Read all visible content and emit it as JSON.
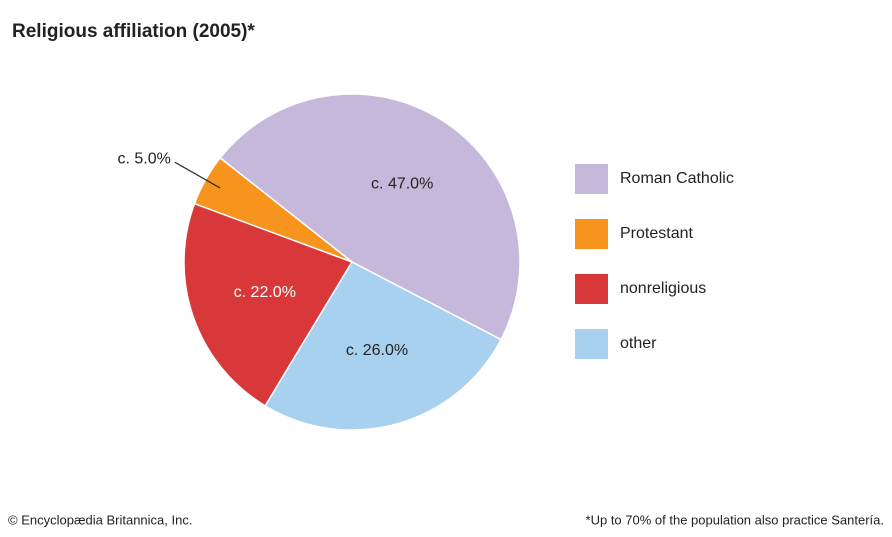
{
  "chart_data": {
    "type": "pie",
    "title": "Religious affiliation (2005)*",
    "categories": [
      "Roman Catholic",
      "Protestant",
      "nonreligious",
      "other"
    ],
    "values": [
      47.0,
      5.0,
      22.0,
      26.0
    ],
    "value_labels": [
      "c. 47.0%",
      "c. 5.0%",
      "c. 22.0%",
      "c. 26.0%"
    ],
    "colors": [
      "#c6b8da",
      "#f7941d",
      "#d9383a",
      "#a8d0ef"
    ],
    "legend": "right",
    "source": "© Encyclopædia Britannica, Inc.",
    "footnote": "*Up to 70% of the population also practice Santería."
  }
}
